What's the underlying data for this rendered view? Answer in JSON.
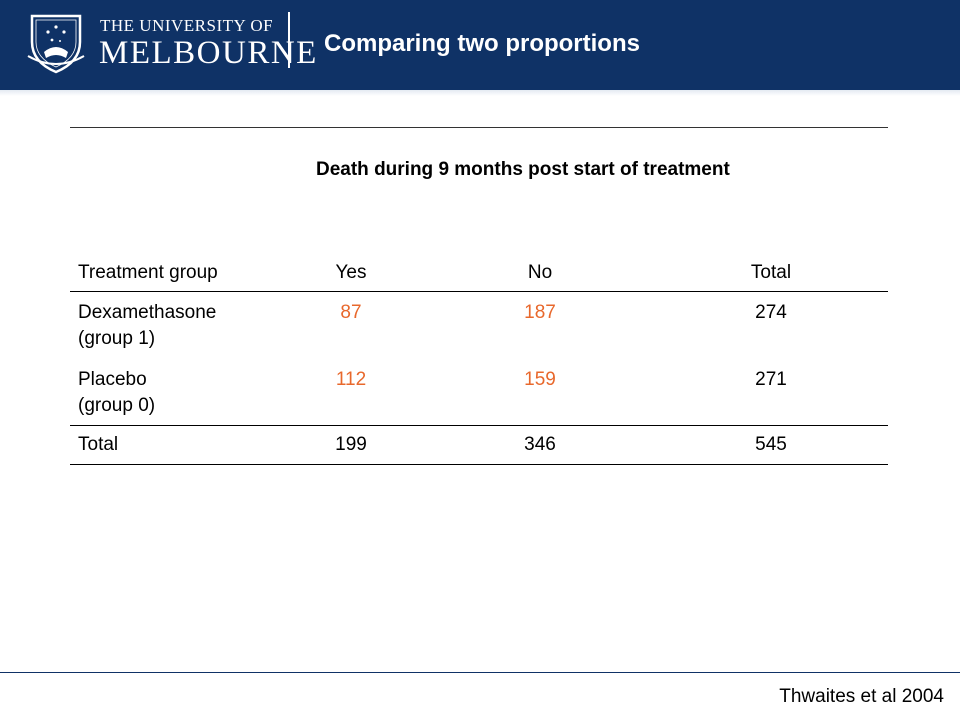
{
  "header": {
    "university_line1": "THE UNIVERSITY OF",
    "university_line2": "MELBOURNE",
    "slide_title": "Comparing two proportions"
  },
  "table": {
    "title": "Death during 9 months post start of treatment",
    "columns": [
      "Treatment group",
      "Yes",
      "No",
      "Total"
    ],
    "rows": [
      {
        "group_line1": "Dexamethasone",
        "group_line2": "(group 1)",
        "yes": "87",
        "no": "187",
        "total": "274"
      },
      {
        "group_line1": "Placebo",
        "group_line2": "(group 0)",
        "yes": "112",
        "no": "159",
        "total": "271"
      }
    ],
    "totals": {
      "label": "Total",
      "yes": "199",
      "no": "346",
      "total": "545"
    }
  },
  "footer": {
    "source": "Thwaites et al 2004"
  },
  "colors": {
    "header_background": "#0f3266",
    "highlight_text": "#e8682c"
  },
  "icons": [
    "university-crest-icon"
  ]
}
